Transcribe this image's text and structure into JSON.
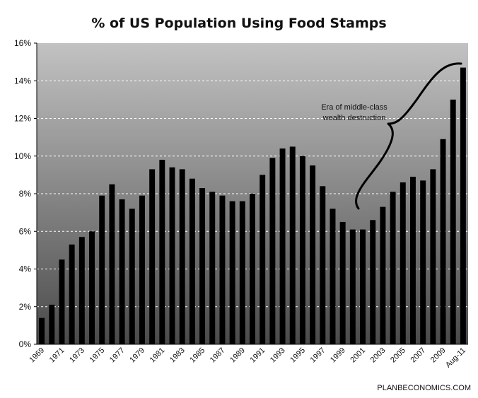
{
  "chart_data": {
    "type": "bar",
    "title": "% of US Population Using Food Stamps",
    "xlabel": "",
    "ylabel": "",
    "ylim": [
      0,
      16
    ],
    "y_ticks": [
      "0%",
      "2%",
      "4%",
      "6%",
      "8%",
      "10%",
      "12%",
      "14%",
      "16%"
    ],
    "grid": "horizontal dashed",
    "categories": [
      "1969",
      "1970",
      "1971",
      "1972",
      "1973",
      "1974",
      "1975",
      "1976",
      "1977",
      "1978",
      "1979",
      "1980",
      "1981",
      "1982",
      "1983",
      "1984",
      "1985",
      "1986",
      "1987",
      "1988",
      "1989",
      "1990",
      "1991",
      "1992",
      "1993",
      "1994",
      "1995",
      "1996",
      "1997",
      "1998",
      "1999",
      "2000",
      "2001",
      "2002",
      "2003",
      "2004",
      "2005",
      "2006",
      "2007",
      "2008",
      "2009",
      "2010",
      "Aug-11"
    ],
    "x_tick_labels": [
      "1969",
      "1971",
      "1973",
      "1975",
      "1977",
      "1979",
      "1981",
      "1983",
      "1985",
      "1987",
      "1989",
      "1991",
      "1993",
      "1995",
      "1997",
      "1999",
      "2001",
      "2003",
      "2005",
      "2007",
      "2009",
      "Aug-11"
    ],
    "values": [
      1.4,
      2.1,
      4.5,
      5.3,
      5.7,
      6.0,
      7.9,
      8.5,
      7.7,
      7.2,
      7.9,
      9.3,
      9.8,
      9.4,
      9.3,
      8.8,
      8.3,
      8.1,
      7.9,
      7.6,
      7.6,
      8.0,
      9.0,
      9.9,
      10.4,
      10.5,
      10.0,
      9.5,
      8.4,
      7.2,
      6.5,
      6.1,
      6.1,
      6.6,
      7.3,
      8.1,
      8.6,
      8.9,
      8.7,
      9.3,
      10.9,
      13.0,
      14.7
    ],
    "annotations": [
      {
        "text_lines": [
          "Era of middle-class",
          "wealth destruction"
        ]
      }
    ],
    "bar_color": "#000000"
  },
  "credit": "PLANBECONOMICS.COM"
}
